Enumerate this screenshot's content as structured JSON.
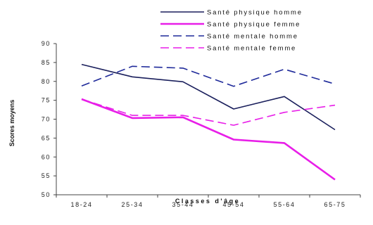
{
  "chart_data": {
    "type": "line",
    "categories": [
      "18-24",
      "25-34",
      "35-44",
      "45-54",
      "55-64",
      "65-75"
    ],
    "xlabel": "Classes d'âge",
    "ylabel": "Scores moyens",
    "ylim": [
      50,
      90
    ],
    "yticks": [
      50,
      55,
      60,
      65,
      70,
      75,
      80,
      85,
      90
    ],
    "grid": false,
    "legend_position": "top",
    "series": [
      {
        "name": "Santé physique homme",
        "color": "#1a1f5c",
        "dash": "solid",
        "values": [
          84.5,
          81.2,
          79.9,
          72.7,
          76.0,
          67.2
        ]
      },
      {
        "name": "Santé physique femme",
        "color": "#e81ee8",
        "dash": "solid",
        "values": [
          75.3,
          70.3,
          70.5,
          64.6,
          63.7,
          54.0
        ]
      },
      {
        "name": "Santé mentale homme",
        "color": "#1f2a9a",
        "dash": "dashed",
        "values": [
          78.8,
          84.0,
          83.5,
          78.7,
          83.2,
          79.3
        ]
      },
      {
        "name": "Santé mentale femme",
        "color": "#e81ee8",
        "dash": "dashed",
        "values": [
          75.3,
          71.0,
          71.0,
          68.4,
          71.8,
          73.7
        ]
      }
    ]
  }
}
